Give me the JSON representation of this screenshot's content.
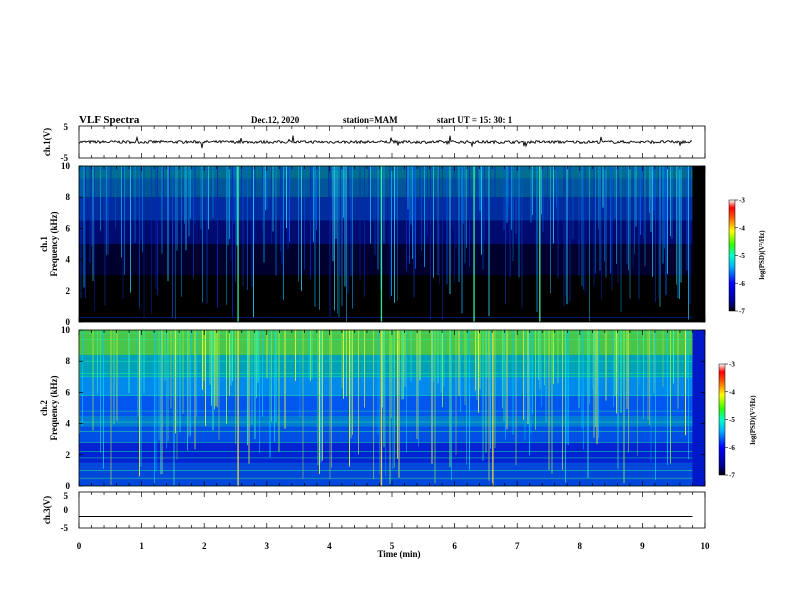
{
  "header": {
    "title": "VLF Spectra",
    "date": "Dec.12, 2020",
    "station": "station=MAM",
    "start": "start  UT =   15: 30: 1"
  },
  "chart_data": [
    {
      "type": "line",
      "panel": "ch1-waveform",
      "ylabel": "ch.1(V)",
      "ylim": [
        -5,
        5
      ],
      "yticks": [
        "5",
        "-5"
      ],
      "xlim": [
        0,
        10
      ],
      "series": [
        {
          "baseline": 0,
          "color": "#000000"
        }
      ]
    },
    {
      "type": "heatmap",
      "panel": "ch1-spectrogram",
      "ylabel_lines": [
        "ch.1",
        "Frequency  (kHz)"
      ],
      "ylim": [
        0,
        10
      ],
      "yticks": [
        "0",
        "2",
        "4",
        "6",
        "8",
        "10"
      ],
      "xlim": [
        0,
        10
      ],
      "data_end_min": 9.8,
      "colorbar": {
        "label": "log(PSD)(V²/Hz)",
        "range": [
          -7,
          -3
        ],
        "ticks": [
          "-3",
          "-4",
          "-5",
          "-6",
          "-7"
        ]
      }
    },
    {
      "type": "heatmap",
      "panel": "ch2-spectrogram",
      "ylabel_lines": [
        "ch.2",
        "Frequency  (kHz)"
      ],
      "ylim": [
        0,
        10
      ],
      "yticks": [
        "0",
        "2",
        "4",
        "6",
        "8",
        "10"
      ],
      "xlim": [
        0,
        10
      ],
      "data_end_min": 9.8,
      "colorbar": {
        "label": "log(PSD)(V²/Hz)",
        "range": [
          -7,
          -3
        ],
        "ticks": [
          "-3",
          "-4",
          "-5",
          "-6",
          "-7"
        ]
      }
    },
    {
      "type": "line",
      "panel": "ch3-waveform",
      "ylabel": "ch.3(V)",
      "ylim": [
        -5,
        5
      ],
      "yticks": [
        "5",
        "0",
        "-5"
      ],
      "xlim": [
        0,
        10
      ],
      "series": [
        {
          "baseline": -1.8,
          "color": "#000000"
        }
      ],
      "xlabel": "Time  (min)",
      "xticks": [
        "0",
        "1",
        "2",
        "3",
        "4",
        "5",
        "6",
        "7",
        "8",
        "9",
        "10"
      ]
    }
  ]
}
